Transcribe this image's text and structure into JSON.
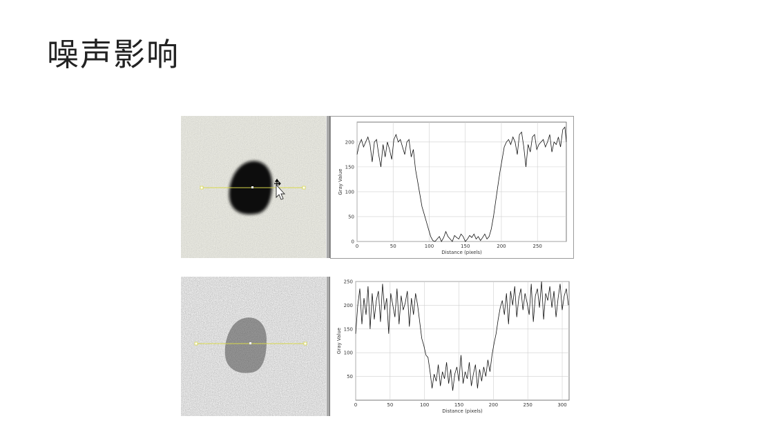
{
  "slide": {
    "title": "噪声影响"
  },
  "colors": {
    "profile_line": "#d8d84a",
    "chart_line": "#111111",
    "grid": "#cfcfcf",
    "blob_dark": "#111111",
    "blob_noisy": "#333333"
  },
  "icons": {
    "cursor": "arrow-cursor-icon",
    "move": "move-arrows-icon"
  },
  "chart_data": [
    {
      "type": "line",
      "title": "",
      "xlabel": "Distance (pixels)",
      "ylabel": "Gray Value",
      "xlim": [
        0,
        290
      ],
      "ylim": [
        0,
        240
      ],
      "xticks": [
        0,
        50,
        100,
        150,
        200,
        250
      ],
      "yticks": [
        0,
        50,
        100,
        150,
        200
      ],
      "grid": true,
      "series": [
        {
          "x": [
            0,
            3,
            6,
            9,
            12,
            15,
            18,
            21,
            24,
            27,
            30,
            33,
            36,
            39,
            42,
            45,
            48,
            51,
            54,
            57,
            60,
            63,
            66,
            69,
            72,
            75,
            78,
            81,
            84,
            87,
            90,
            93,
            96,
            99,
            102,
            105,
            108,
            111,
            114,
            117,
            120,
            123,
            126,
            129,
            132,
            135,
            138,
            141,
            144,
            147,
            150,
            153,
            156,
            159,
            162,
            165,
            168,
            171,
            174,
            177,
            180,
            183,
            186,
            189,
            192,
            195,
            198,
            201,
            204,
            207,
            210,
            213,
            216,
            219,
            222,
            225,
            228,
            231,
            234,
            237,
            240,
            243,
            246,
            249,
            252,
            255,
            258,
            261,
            264,
            267,
            270,
            273,
            276,
            279,
            282,
            285,
            288,
            290
          ],
          "y": [
            175,
            195,
            205,
            190,
            200,
            210,
            195,
            160,
            200,
            205,
            175,
            150,
            195,
            170,
            200,
            185,
            165,
            205,
            215,
            200,
            205,
            190,
            175,
            200,
            205,
            170,
            185,
            145,
            120,
            95,
            70,
            55,
            40,
            25,
            10,
            2,
            0,
            5,
            10,
            0,
            8,
            20,
            10,
            5,
            0,
            12,
            8,
            5,
            15,
            10,
            0,
            5,
            12,
            8,
            15,
            5,
            10,
            2,
            8,
            15,
            5,
            10,
            25,
            50,
            80,
            110,
            140,
            165,
            190,
            200,
            205,
            195,
            210,
            200,
            175,
            215,
            220,
            190,
            150,
            195,
            180,
            210,
            215,
            185,
            195,
            200,
            205,
            190,
            200,
            215,
            180,
            200,
            195,
            210,
            190,
            225,
            230,
            200
          ]
        }
      ]
    },
    {
      "type": "line",
      "title": "",
      "xlabel": "Distance (pixels)",
      "ylabel": "Gray Value",
      "xlim": [
        0,
        310
      ],
      "ylim": [
        0,
        250
      ],
      "xticks": [
        0,
        50,
        100,
        150,
        200,
        250,
        300
      ],
      "yticks": [
        50,
        100,
        150,
        200,
        250
      ],
      "grid": true,
      "series": [
        {
          "x": [
            0,
            3,
            6,
            9,
            12,
            15,
            18,
            21,
            24,
            27,
            30,
            33,
            36,
            39,
            42,
            45,
            48,
            51,
            54,
            57,
            60,
            63,
            66,
            69,
            72,
            75,
            78,
            81,
            84,
            87,
            90,
            93,
            96,
            99,
            102,
            105,
            108,
            111,
            114,
            117,
            120,
            123,
            126,
            129,
            132,
            135,
            138,
            141,
            144,
            147,
            150,
            153,
            156,
            159,
            162,
            165,
            168,
            171,
            174,
            177,
            180,
            183,
            186,
            189,
            192,
            195,
            198,
            201,
            204,
            207,
            210,
            213,
            216,
            219,
            222,
            225,
            228,
            231,
            234,
            237,
            240,
            243,
            246,
            249,
            252,
            255,
            258,
            261,
            264,
            267,
            270,
            273,
            276,
            279,
            282,
            285,
            288,
            291,
            294,
            297,
            300,
            303,
            306,
            309
          ],
          "y": [
            140,
            200,
            235,
            160,
            215,
            180,
            240,
            150,
            225,
            170,
            210,
            230,
            165,
            245,
            190,
            215,
            140,
            225,
            200,
            175,
            235,
            160,
            220,
            190,
            205,
            230,
            155,
            215,
            180,
            225,
            200,
            165,
            130,
            115,
            95,
            90,
            60,
            25,
            55,
            40,
            75,
            30,
            60,
            45,
            80,
            35,
            65,
            20,
            55,
            70,
            40,
            95,
            35,
            60,
            45,
            80,
            30,
            55,
            75,
            25,
            65,
            40,
            70,
            50,
            85,
            60,
            95,
            120,
            140,
            170,
            195,
            210,
            180,
            225,
            160,
            230,
            200,
            240,
            175,
            215,
            235,
            190,
            225,
            205,
            180,
            245,
            165,
            220,
            235,
            195,
            250,
            170,
            225,
            210,
            240,
            195,
            230,
            175,
            215,
            245,
            190,
            220,
            235,
            200
          ]
        }
      ]
    }
  ]
}
